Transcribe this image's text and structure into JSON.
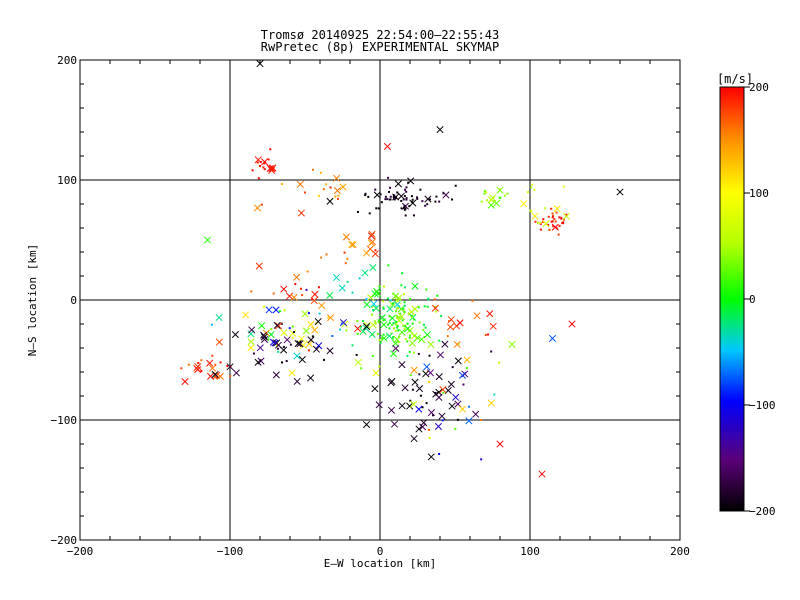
{
  "chart_data": {
    "type": "scatter",
    "title": "Tromsø 20140925 22:54:00–22:55:43",
    "subtitle": "RwPretec (8p) EXPERIMENTAL SKYMAP",
    "xlabel": "E–W location [km]",
    "ylabel": "N–S location [km]",
    "xlim": [
      -200,
      200
    ],
    "ylim": [
      -200,
      200
    ],
    "x_ticks": [
      -200,
      -100,
      0,
      100,
      200
    ],
    "x_tick_labels": [
      "−200",
      "−100",
      "0",
      "100",
      "200"
    ],
    "y_ticks": [
      -200,
      -100,
      0,
      100,
      200
    ],
    "y_tick_labels": [
      "−200",
      "−100",
      "0",
      "100",
      "200"
    ],
    "grid": true,
    "colorbar": {
      "label": "[m/s]",
      "range": [
        -200,
        200
      ],
      "ticks": [
        200,
        100,
        0,
        -100,
        -200
      ],
      "tick_labels": [
        "200",
        "100",
        "0",
        "−100",
        "−200"
      ],
      "colormap": "rainbow: black (-200) → purple → blue → cyan → green (0) → yellow → orange → red (200)"
    },
    "marker_legend": {
      "cross": "x marks (meteor detections)",
      "dot": "small dots"
    },
    "clusters": [
      {
        "name": "north band black",
        "cx": 15,
        "cy": 85,
        "sx": 15,
        "sy": 6,
        "n": 70,
        "v": [
          -210,
          -180
        ],
        "cross": 0.15
      },
      {
        "name": "north band orange",
        "cx": -45,
        "cy": 90,
        "sx": 20,
        "sy": 8,
        "n": 18,
        "v": [
          120,
          190
        ],
        "cross": 0.5
      },
      {
        "name": "northwest red",
        "cx": -75,
        "cy": 110,
        "sx": 4,
        "sy": 4,
        "n": 18,
        "v": [
          185,
          210
        ],
        "cross": 0.3
      },
      {
        "name": "northeast red",
        "cx": 118,
        "cy": 66,
        "sx": 6,
        "sy": 5,
        "n": 30,
        "v": [
          170,
          210
        ],
        "cross": 0.1
      },
      {
        "name": "northeast mixed",
        "cx": 100,
        "cy": 80,
        "sx": 12,
        "sy": 10,
        "n": 18,
        "v": [
          40,
          120
        ],
        "cross": 0.25
      },
      {
        "name": "northeast cyan",
        "cx": 75,
        "cy": 88,
        "sx": 6,
        "sy": 5,
        "n": 12,
        "v": [
          0,
          60
        ],
        "cross": 0.3
      },
      {
        "name": "mid-north red",
        "cx": -20,
        "cy": 42,
        "sx": 12,
        "sy": 8,
        "n": 18,
        "v": [
          130,
          200
        ],
        "cross": 0.5
      },
      {
        "name": "center green",
        "cx": 12,
        "cy": -20,
        "sx": 14,
        "sy": 14,
        "n": 130,
        "v": [
          -20,
          60
        ],
        "cross": 0.2
      },
      {
        "name": "center cyan",
        "cx": 5,
        "cy": 5,
        "sx": 18,
        "sy": 10,
        "n": 30,
        "v": [
          -60,
          20
        ],
        "cross": 0.3
      },
      {
        "name": "west red",
        "cx": -110,
        "cy": -55,
        "sx": 10,
        "sy": 8,
        "n": 22,
        "v": [
          150,
          210
        ],
        "cross": 0.4
      },
      {
        "name": "west mixed",
        "cx": -60,
        "cy": -30,
        "sx": 25,
        "sy": 15,
        "n": 60,
        "v": [
          -200,
          200
        ],
        "cross": 0.55
      },
      {
        "name": "west black",
        "cx": -55,
        "cy": -45,
        "sx": 20,
        "sy": 15,
        "n": 30,
        "v": [
          -210,
          -180
        ],
        "cross": 0.7
      },
      {
        "name": "south black",
        "cx": 32,
        "cy": -75,
        "sx": 15,
        "sy": 22,
        "n": 50,
        "v": [
          -210,
          -170
        ],
        "cross": 0.7
      },
      {
        "name": "south mixed",
        "cx": 40,
        "cy": -80,
        "sx": 18,
        "sy": 20,
        "n": 25,
        "v": [
          -150,
          200
        ],
        "cross": 0.5
      },
      {
        "name": "upper-west red",
        "cx": -55,
        "cy": 10,
        "sx": 12,
        "sy": 8,
        "n": 15,
        "v": [
          150,
          210
        ],
        "cross": 0.5
      },
      {
        "name": "east red",
        "cx": 60,
        "cy": -20,
        "sx": 12,
        "sy": 12,
        "n": 15,
        "v": [
          150,
          210
        ],
        "cross": 0.4
      }
    ],
    "isolated_points": [
      {
        "x": -80,
        "y": 197,
        "v": -200,
        "marker": "cross"
      },
      {
        "x": 40,
        "y": 142,
        "v": -200,
        "marker": "cross"
      },
      {
        "x": 160,
        "y": 90,
        "v": -200,
        "marker": "cross"
      },
      {
        "x": 108,
        "y": -145,
        "v": 200,
        "marker": "cross"
      },
      {
        "x": 115,
        "y": -32,
        "v": -80,
        "marker": "cross"
      },
      {
        "x": 128,
        "y": -20,
        "v": 200,
        "marker": "cross"
      },
      {
        "x": -115,
        "y": 50,
        "v": 10,
        "marker": "cross"
      },
      {
        "x": -130,
        "y": -68,
        "v": 200,
        "marker": "cross"
      },
      {
        "x": 88,
        "y": -37,
        "v": 40,
        "marker": "cross"
      },
      {
        "x": 5,
        "y": 128,
        "v": 200,
        "marker": "cross"
      },
      {
        "x": 80,
        "y": -120,
        "v": 200,
        "marker": "cross"
      }
    ]
  }
}
